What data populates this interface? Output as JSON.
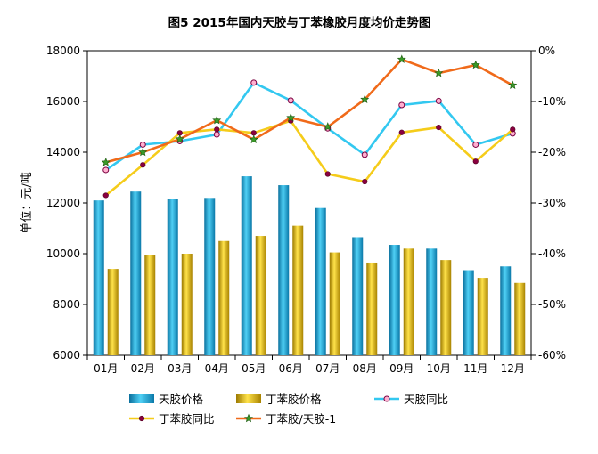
{
  "chart_data": {
    "type": "bar",
    "title": "图5 2015年国内天胶与丁苯橡胶月度均价走势图",
    "ylabel": "单位：元/吨",
    "categories": [
      "01月",
      "02月",
      "03月",
      "04月",
      "05月",
      "06月",
      "07月",
      "08月",
      "09月",
      "10月",
      "11月",
      "12月"
    ],
    "ylim": [
      6000,
      18000
    ],
    "yticks": [
      "6000",
      "8000",
      "10000",
      "12000",
      "14000",
      "16000",
      "18000"
    ],
    "y2lim": [
      -60,
      0
    ],
    "y2ticks": [
      "0%",
      "-10%",
      "-20%",
      "-30%",
      "-40%",
      "-50%",
      "-60%"
    ],
    "grid": false,
    "legend_position": "bottom",
    "colors": {
      "tianjiao_bar": "#1fa3d8",
      "dingben_bar": "#e0b400",
      "tianjiao_yoy": "#33c8f0",
      "dingben_yoy": "#f5cc1a",
      "ratio": "#f06a1a"
    },
    "series": [
      {
        "name": "天胶价格",
        "kind": "bar",
        "axis": "left",
        "values": [
          12100,
          12450,
          12150,
          12200,
          13050,
          12700,
          11800,
          10650,
          10350,
          10200,
          9350,
          9500
        ]
      },
      {
        "name": "丁苯胶价格",
        "kind": "bar",
        "axis": "left",
        "values": [
          9400,
          9950,
          10000,
          10500,
          10700,
          11100,
          10050,
          9650,
          10200,
          9750,
          9050,
          8850
        ]
      },
      {
        "name": "天胶同比",
        "kind": "line",
        "axis": "right",
        "values": [
          -23.5,
          -18.5,
          -17.8,
          -16.5,
          -6.3,
          -9.8,
          -15.3,
          -20.5,
          -10.7,
          -9.9,
          -18.5,
          -16.3
        ]
      },
      {
        "name": "丁苯胶同比",
        "kind": "line",
        "axis": "right",
        "values": [
          -28.5,
          -22.5,
          -16.2,
          -15.5,
          -16.2,
          -13.8,
          -24.3,
          -25.8,
          -16.1,
          -15.1,
          -21.8,
          -15.5
        ]
      },
      {
        "name": "丁苯胶/天胶-1",
        "kind": "line",
        "axis": "right",
        "values": [
          -22.0,
          -20.0,
          -17.4,
          -13.7,
          -17.5,
          -13.2,
          -15.0,
          -9.6,
          -1.7,
          -4.4,
          -2.8,
          -6.8
        ]
      }
    ]
  }
}
